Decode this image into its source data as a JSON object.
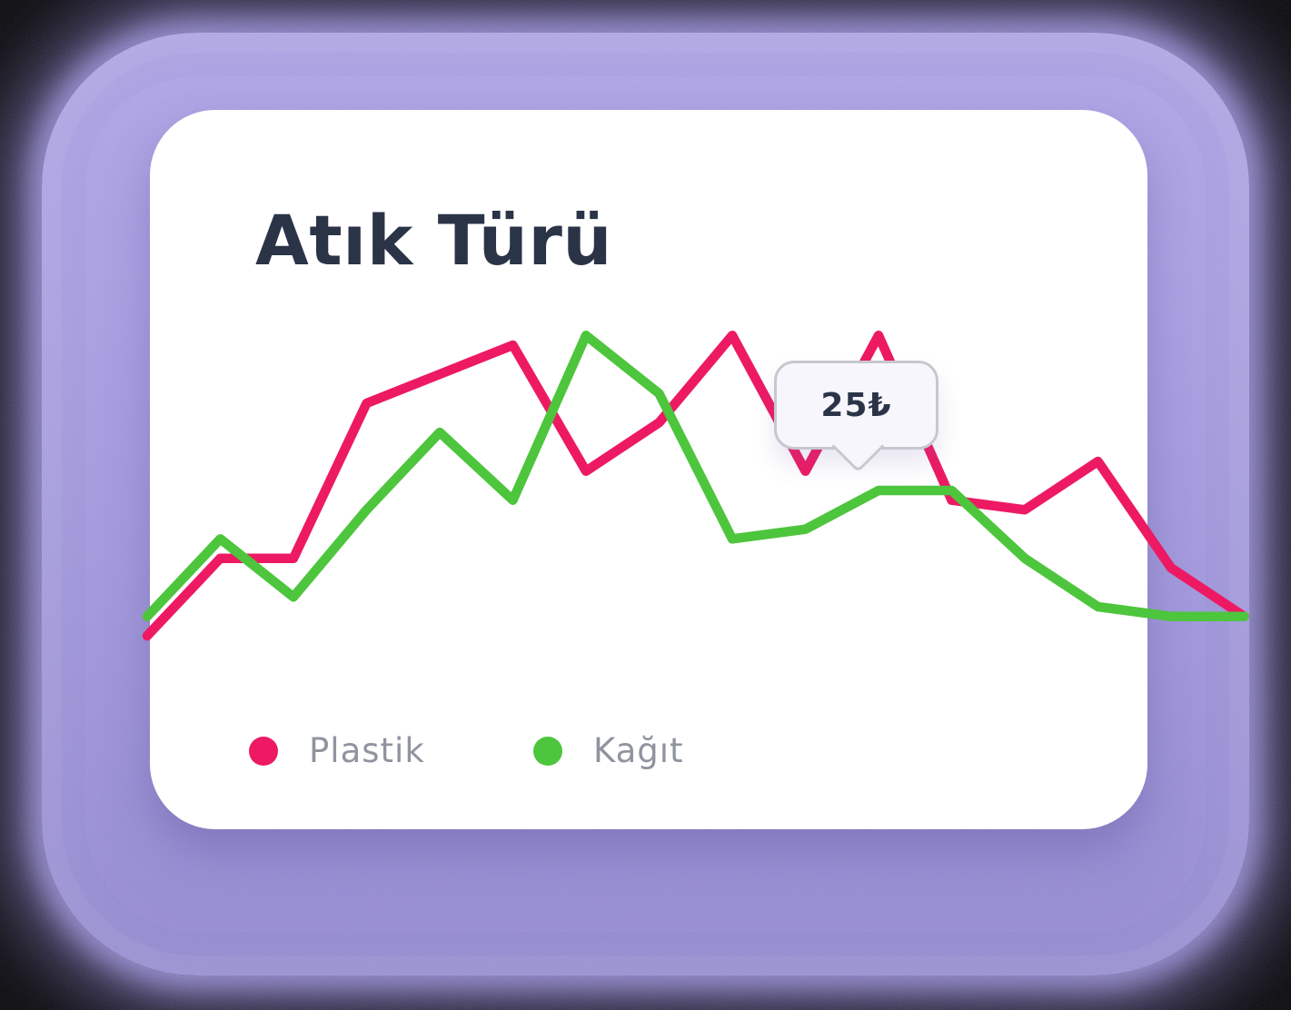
{
  "card": {
    "title": "Atık Türü"
  },
  "legend": [
    {
      "label": "Plastik",
      "color": "#ed1a63"
    },
    {
      "label": "Kağıt",
      "color": "#4dc53c"
    }
  ],
  "tooltip": {
    "label": "25₺",
    "series": "Kağıt",
    "index": 10,
    "value": 25
  },
  "colors": {
    "plastik_line": "#ed1a63",
    "kagit_line": "#4dc53c",
    "title_text": "#2b3447",
    "legend_text": "#8f949f",
    "card_bg": "#ffffff",
    "glow_purple": "#a096d8",
    "page_bg": "#000000",
    "tooltip_bg": "#f7f6fc",
    "tooltip_border": "#c7c7d0"
  },
  "chart_data": {
    "type": "line",
    "unit": "₺",
    "title": "Atık Türü",
    "xlabel": "",
    "ylabel": "",
    "axes_visible": false,
    "grid": false,
    "legend_position": "bottom-left",
    "point_count": 16,
    "ylim": [
      8,
      44
    ],
    "series": [
      {
        "name": "Plastik",
        "color": "#ed1a63",
        "values": [
          10,
          18,
          18,
          34,
          37,
          40,
          27,
          32,
          41,
          27,
          41,
          24,
          23,
          28,
          17,
          12
        ]
      },
      {
        "name": "Kağıt",
        "color": "#4dc53c",
        "values": [
          12,
          20,
          14,
          23,
          31,
          24,
          41,
          35,
          20,
          21,
          25,
          25,
          18,
          13,
          12,
          12
        ]
      }
    ],
    "tooltip": {
      "series": "Kağıt",
      "index": 10,
      "value": 25,
      "label": "25₺"
    }
  }
}
